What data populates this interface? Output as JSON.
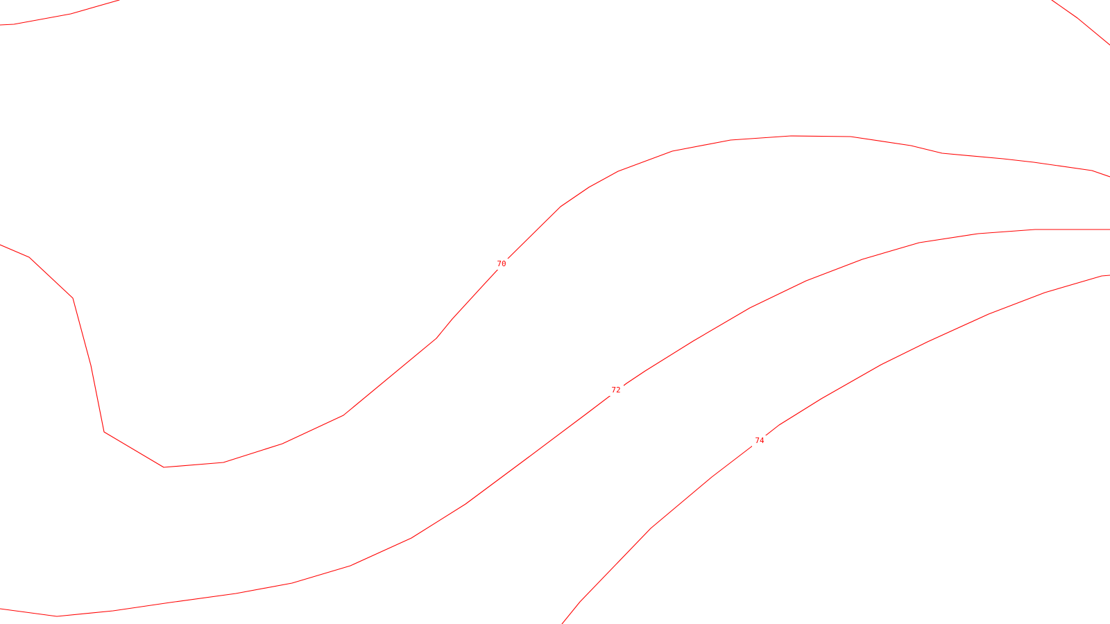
{
  "map": {
    "line_color": "#ff0000",
    "background_color": "#ffffff",
    "contours": [
      {
        "name": "contour-top-left",
        "label": ""
      },
      {
        "name": "contour-top-right",
        "label": ""
      },
      {
        "name": "contour-70",
        "label": "70"
      },
      {
        "name": "contour-72",
        "label": "72"
      },
      {
        "name": "contour-74",
        "label": "74"
      }
    ]
  }
}
